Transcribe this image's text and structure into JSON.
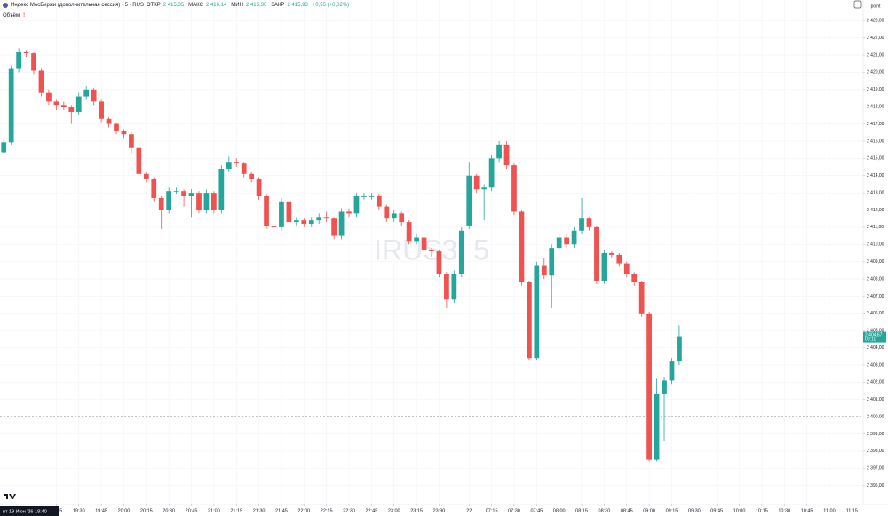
{
  "chart_data": {
    "type": "candlestick",
    "title": "Индекс МосБиржи (дополнительная сессия) · 5 · RUS",
    "ohlc_legend": [
      {
        "label": "ОТКР",
        "value": "2 415,35"
      },
      {
        "label": "МАКС",
        "value": "2 416,14"
      },
      {
        "label": "МИН",
        "value": "2 415,30"
      },
      {
        "label": "ЗАКР",
        "value": "2 415,93"
      }
    ],
    "change": "+0,55 (+0,02%)",
    "volume_label": "Объём",
    "watermark": "IRUS3, 5",
    "unit": "point",
    "crosshair_time": "пт 19 Июн '26  18:40",
    "last_price_label": "2 404,67",
    "countdown": "00:11",
    "up_color": "#26a69a",
    "down_color": "#ef5350",
    "grid": true,
    "hline": 2400,
    "open": [
      2415.35,
      2415.93,
      2420.2,
      2421.2,
      2421.1,
      2420.1,
      2418.8,
      2418.3,
      2418.1,
      2418.0,
      2417.7,
      2418.6,
      2419.0,
      2418.3,
      2417.3,
      2417.0,
      2416.6,
      2416.4,
      2415.6,
      2414.1,
      2413.8,
      2412.7,
      2412.0,
      2413.1,
      2413.1,
      2412.8,
      2413.0,
      2412.0,
      2413.0,
      2412.0,
      2414.4,
      2414.8,
      2414.7,
      2414.1,
      2413.8,
      2412.8,
      2411.1,
      2411.0,
      2412.5,
      2411.3,
      2411.4,
      2411.2,
      2411.4,
      2411.6,
      2411.5,
      2410.5,
      2411.9,
      2411.8,
      2412.8,
      2412.8,
      2412.8,
      2412.2,
      2411.5,
      2411.8,
      2411.3,
      2410.2,
      2410.4,
      2409.7,
      2409.6,
      2408.3,
      2406.8,
      2408.3,
      2411.1,
      2414.0,
      2413.2,
      2413.3,
      2415.0,
      2415.8,
      2414.6,
      2411.9,
      2407.8,
      2403.4,
      2408.8,
      2408.2,
      2409.8,
      2410.4,
      2410.0,
      2410.8,
      2411.5,
      2411.0,
      2407.9,
      2409.5,
      2409.4,
      2408.9,
      2408.3,
      2407.8,
      2406.0,
      2397.5,
      2401.3,
      2402.1,
      2403.2
    ],
    "high": [
      2416.14,
      2420.4,
      2421.4,
      2421.3,
      2421.2,
      2420.2,
      2419.0,
      2418.4,
      2418.3,
      2418.1,
      2418.8,
      2419.2,
      2419.1,
      2418.4,
      2417.4,
      2417.1,
      2416.7,
      2416.5,
      2415.7,
      2414.2,
      2413.9,
      2412.8,
      2413.3,
      2413.3,
      2413.2,
      2413.2,
      2413.1,
      2413.2,
      2413.1,
      2414.6,
      2415.1,
      2415.0,
      2414.8,
      2414.2,
      2413.9,
      2412.9,
      2411.2,
      2412.7,
      2412.6,
      2411.6,
      2411.5,
      2411.6,
      2411.8,
      2411.9,
      2411.6,
      2412.1,
      2412.1,
      2413.0,
      2413.0,
      2413.0,
      2412.9,
      2412.3,
      2412.0,
      2411.9,
      2411.4,
      2410.6,
      2410.5,
      2409.8,
      2409.7,
      2408.4,
      2408.5,
      2411.0,
      2414.8,
      2414.1,
      2413.5,
      2415.2,
      2416.0,
      2416.0,
      2414.7,
      2412.0,
      2407.9,
      2409.0,
      2409.2,
      2410.0,
      2410.6,
      2410.6,
      2411.0,
      2412.7,
      2411.6,
      2411.1,
      2409.7,
      2409.6,
      2409.5,
      2409.0,
      2408.4,
      2407.9,
      2406.1,
      2402.2,
      2402.3,
      2403.4,
      2405.3
    ],
    "low": [
      2415.3,
      2415.8,
      2420.0,
      2420.9,
      2419.9,
      2418.6,
      2418.1,
      2417.8,
      2417.8,
      2417.0,
      2417.5,
      2418.4,
      2418.1,
      2417.1,
      2416.8,
      2416.4,
      2416.2,
      2415.3,
      2413.9,
      2413.6,
      2412.5,
      2410.9,
      2411.8,
      2412.9,
      2412.2,
      2411.6,
      2411.8,
      2411.8,
      2411.8,
      2411.8,
      2414.2,
      2414.5,
      2413.9,
      2413.6,
      2412.6,
      2410.9,
      2410.6,
      2410.8,
      2411.1,
      2411.1,
      2411.0,
      2411.0,
      2411.2,
      2411.3,
      2410.3,
      2410.3,
      2411.6,
      2411.6,
      2412.6,
      2412.6,
      2412.0,
      2411.3,
      2411.3,
      2411.1,
      2410.0,
      2410.0,
      2409.5,
      2409.3,
      2408.1,
      2406.3,
      2406.6,
      2408.1,
      2410.9,
      2413.0,
      2411.4,
      2413.1,
      2414.8,
      2414.4,
      2411.7,
      2407.6,
      2403.3,
      2403.3,
      2408.0,
      2406.3,
      2409.6,
      2409.8,
      2409.8,
      2410.6,
      2410.8,
      2407.7,
      2407.7,
      2409.2,
      2408.7,
      2408.1,
      2407.6,
      2405.8,
      2397.4,
      2397.4,
      2398.6,
      2401.9,
      2403.0
    ],
    "close": [
      2415.93,
      2420.2,
      2421.2,
      2421.1,
      2420.1,
      2418.8,
      2418.3,
      2418.1,
      2418.0,
      2417.7,
      2418.6,
      2419.0,
      2418.3,
      2417.3,
      2417.0,
      2416.6,
      2416.4,
      2415.6,
      2414.1,
      2413.8,
      2412.7,
      2412.0,
      2413.1,
      2413.1,
      2412.8,
      2413.0,
      2412.0,
      2413.0,
      2412.0,
      2414.4,
      2414.8,
      2414.7,
      2414.1,
      2413.8,
      2412.8,
      2411.1,
      2411.0,
      2412.5,
      2411.3,
      2411.4,
      2411.2,
      2411.4,
      2411.6,
      2411.5,
      2410.5,
      2411.9,
      2411.8,
      2412.8,
      2412.8,
      2412.8,
      2412.2,
      2411.5,
      2411.8,
      2411.3,
      2410.2,
      2410.4,
      2409.7,
      2409.6,
      2408.3,
      2406.8,
      2408.3,
      2410.8,
      2414.0,
      2413.2,
      2413.3,
      2415.0,
      2415.8,
      2414.6,
      2411.9,
      2407.8,
      2403.4,
      2408.8,
      2408.2,
      2409.8,
      2410.4,
      2410.0,
      2410.8,
      2411.5,
      2411.0,
      2407.9,
      2409.5,
      2409.4,
      2408.9,
      2408.3,
      2407.8,
      2406.0,
      2397.5,
      2401.3,
      2402.1,
      2403.2,
      2404.67
    ],
    "xlim": [
      -0.5,
      114.5
    ],
    "xticks": [
      {
        "value": 7,
        "label": "19:15"
      },
      {
        "value": 10,
        "label": "19:30"
      },
      {
        "value": 13,
        "label": "19:45"
      },
      {
        "value": 16,
        "label": "20:00"
      },
      {
        "value": 19,
        "label": "20:15"
      },
      {
        "value": 22,
        "label": "20:30"
      },
      {
        "value": 25,
        "label": "20:45"
      },
      {
        "value": 28,
        "label": "21:00"
      },
      {
        "value": 31,
        "label": "21:15"
      },
      {
        "value": 34,
        "label": "21:30"
      },
      {
        "value": 37,
        "label": "21:45"
      },
      {
        "value": 40,
        "label": "22:00"
      },
      {
        "value": 43,
        "label": "22:15"
      },
      {
        "value": 46,
        "label": "22:30"
      },
      {
        "value": 49,
        "label": "22:45"
      },
      {
        "value": 52,
        "label": "23:00"
      },
      {
        "value": 55,
        "label": "23:15"
      },
      {
        "value": 58,
        "label": "23:30"
      },
      {
        "value": 62,
        "label": "22"
      },
      {
        "value": 65,
        "label": "07:15"
      },
      {
        "value": 68,
        "label": "07:30"
      },
      {
        "value": 71,
        "label": "07:45"
      },
      {
        "value": 74,
        "label": "08:00"
      },
      {
        "value": 77,
        "label": "08:15"
      },
      {
        "value": 80,
        "label": "08:30"
      },
      {
        "value": 83,
        "label": "08:45"
      },
      {
        "value": 86,
        "label": "09:00"
      },
      {
        "value": 89,
        "label": "09:15"
      },
      {
        "value": 92,
        "label": "09:30"
      },
      {
        "value": 95,
        "label": "09:45"
      },
      {
        "value": 98,
        "label": "10:00"
      },
      {
        "value": 101,
        "label": "10:15"
      },
      {
        "value": 104,
        "label": "10:30"
      },
      {
        "value": 107,
        "label": "10:45"
      },
      {
        "value": 110,
        "label": "11:00"
      },
      {
        "value": 113,
        "label": "11:15"
      }
    ],
    "ylim": [
      2394.9,
      2424.2
    ],
    "yticks": [
      {
        "value": 2396,
        "label": "2 396,00"
      },
      {
        "value": 2397,
        "label": "2 397,00"
      },
      {
        "value": 2398,
        "label": "2 398,00"
      },
      {
        "value": 2399,
        "label": "2 399,00"
      },
      {
        "value": 2400,
        "label": "2 400,00"
      },
      {
        "value": 2401,
        "label": "2 401,00"
      },
      {
        "value": 2402,
        "label": "2 402,00"
      },
      {
        "value": 2403,
        "label": "2 403,00"
      },
      {
        "value": 2404,
        "label": "2 404,00"
      },
      {
        "value": 2405,
        "label": "2 405,00"
      },
      {
        "value": 2406,
        "label": "2 406,00"
      },
      {
        "value": 2407,
        "label": "2 407,00"
      },
      {
        "value": 2408,
        "label": "2 408,00"
      },
      {
        "value": 2409,
        "label": "2 409,00"
      },
      {
        "value": 2410,
        "label": "2 410,00"
      },
      {
        "value": 2411,
        "label": "2 411,00"
      },
      {
        "value": 2412,
        "label": "2 412,00"
      },
      {
        "value": 2413,
        "label": "2 413,00"
      },
      {
        "value": 2414,
        "label": "2 414,00"
      },
      {
        "value": 2415,
        "label": "2 415,00"
      },
      {
        "value": 2416,
        "label": "2 416,00"
      },
      {
        "value": 2417,
        "label": "2 417,00"
      },
      {
        "value": 2418,
        "label": "2 418,00"
      },
      {
        "value": 2419,
        "label": "2 419,00"
      },
      {
        "value": 2420,
        "label": "2 420,00"
      },
      {
        "value": 2421,
        "label": "2 421,00"
      },
      {
        "value": 2422,
        "label": "2 422,00"
      },
      {
        "value": 2423,
        "label": "2 423,00"
      }
    ]
  }
}
